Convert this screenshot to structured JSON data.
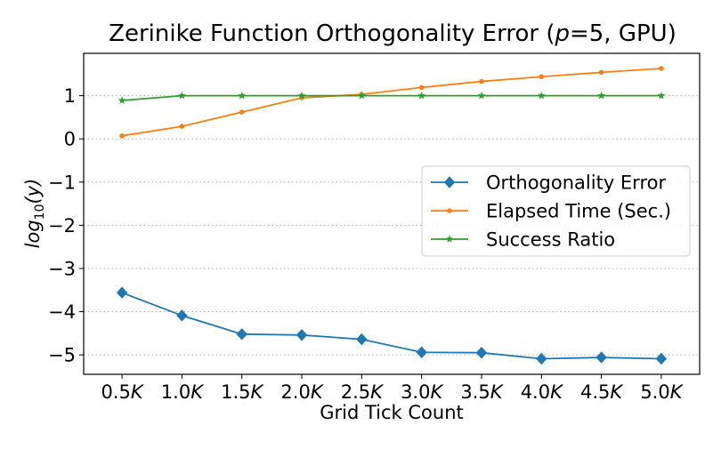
{
  "chart_data": {
    "type": "line",
    "title": "Zerinike Function Orthogonality Error (p=5, GPU)",
    "title_parts": {
      "prefix": "Zerinike Function Orthogonality Error (",
      "param": "p",
      "suffix": "=5, GPU)"
    },
    "xlabel": "Grid Tick Count",
    "ylabel": "log10(y)",
    "ylabel_parts": {
      "base": "log",
      "sub": "10",
      "arg": "(y)"
    },
    "x": [
      500,
      1000,
      1500,
      2000,
      2500,
      3000,
      3500,
      4000,
      4500,
      5000
    ],
    "x_tick_labels": [
      {
        "num": "0.5",
        "unit": "K"
      },
      {
        "num": "1.0",
        "unit": "K"
      },
      {
        "num": "1.5",
        "unit": "K"
      },
      {
        "num": "2.0",
        "unit": "K"
      },
      {
        "num": "2.5",
        "unit": "K"
      },
      {
        "num": "3.0",
        "unit": "K"
      },
      {
        "num": "3.5",
        "unit": "K"
      },
      {
        "num": "4.0",
        "unit": "K"
      },
      {
        "num": "4.5",
        "unit": "K"
      },
      {
        "num": "5.0",
        "unit": "K"
      }
    ],
    "yticks": [
      1,
      0,
      -1,
      -2,
      -3,
      -4,
      -5
    ],
    "ytick_labels": [
      "1",
      "0",
      "−1",
      "−2",
      "−3",
      "−4",
      "−5"
    ],
    "xlim": [
      180,
      5320
    ],
    "ylim": [
      -5.45,
      1.98
    ],
    "grid": "horizontal-dotted",
    "legend_position": "center-right",
    "series": [
      {
        "name": "Orthogonality Error",
        "color": "#1f77b4",
        "marker": "diamond",
        "values": [
          -3.56,
          -4.09,
          -4.52,
          -4.54,
          -4.64,
          -4.94,
          -4.95,
          -5.09,
          -5.06,
          -5.09
        ]
      },
      {
        "name": "Elapsed Time (Sec.)",
        "color": "#ff7f0e",
        "marker": "circle",
        "values": [
          0.07,
          0.29,
          0.62,
          0.95,
          1.03,
          1.19,
          1.33,
          1.44,
          1.54,
          1.63
        ]
      },
      {
        "name": "Success Ratio",
        "color": "#2ca02c",
        "marker": "star",
        "values": [
          0.89,
          1.0,
          1.0,
          1.0,
          1.0,
          1.0,
          1.0,
          1.0,
          1.0,
          1.0
        ]
      }
    ]
  }
}
